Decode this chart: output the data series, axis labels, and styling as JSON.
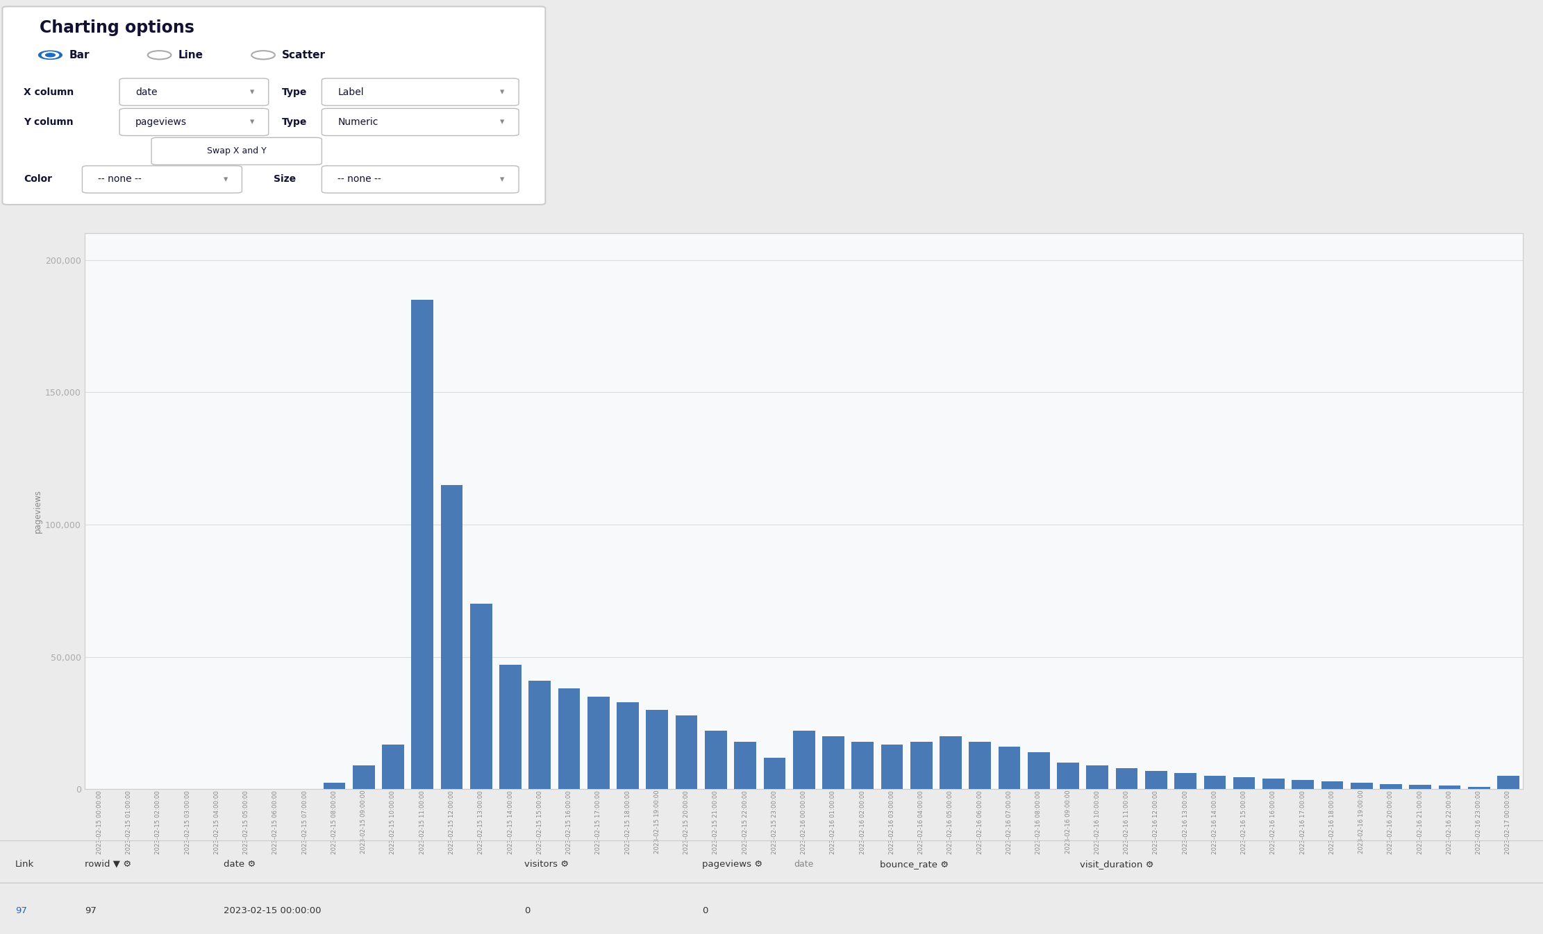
{
  "bar_color": "#4a7ab5",
  "fig_bg": "#ebebeb",
  "chart_bg": "#f8f9fa",
  "plot_bg": "#ffffff",
  "ylim": [
    0,
    210000
  ],
  "yticks": [
    0,
    50000,
    100000,
    150000,
    200000
  ],
  "ytick_labels": [
    "0",
    "50,000",
    "100,000",
    "150,000",
    "200,000"
  ],
  "ylabel": "pageviews",
  "xlabel": "date",
  "dates": [
    "2023-02-15 00:00:00",
    "2023-02-15 01:00:00",
    "2023-02-15 02:00:00",
    "2023-02-15 03:00:00",
    "2023-02-15 04:00:00",
    "2023-02-15 05:00:00",
    "2023-02-15 06:00:00",
    "2023-02-15 07:00:00",
    "2023-02-15 08:00:00",
    "2023-02-15 09:00:00",
    "2023-02-15 10:00:00",
    "2023-02-15 11:00:00",
    "2023-02-15 12:00:00",
    "2023-02-15 13:00:00",
    "2023-02-15 14:00:00",
    "2023-02-15 15:00:00",
    "2023-02-15 16:00:00",
    "2023-02-15 17:00:00",
    "2023-02-15 18:00:00",
    "2023-02-15 19:00:00",
    "2023-02-15 20:00:00",
    "2023-02-15 21:00:00",
    "2023-02-15 22:00:00",
    "2023-02-15 23:00:00",
    "2023-02-16 00:00:00",
    "2023-02-16 01:00:00",
    "2023-02-16 02:00:00",
    "2023-02-16 03:00:00",
    "2023-02-16 04:00:00",
    "2023-02-16 05:00:00",
    "2023-02-16 06:00:00",
    "2023-02-16 07:00:00",
    "2023-02-16 08:00:00",
    "2023-02-16 09:00:00",
    "2023-02-16 10:00:00",
    "2023-02-16 11:00:00",
    "2023-02-16 12:00:00",
    "2023-02-16 13:00:00",
    "2023-02-16 14:00:00",
    "2023-02-16 15:00:00",
    "2023-02-16 16:00:00",
    "2023-02-16 17:00:00",
    "2023-02-16 18:00:00",
    "2023-02-16 19:00:00",
    "2023-02-16 20:00:00",
    "2023-02-16 21:00:00",
    "2023-02-16 22:00:00",
    "2023-02-16 23:00:00",
    "2023-02-17 00:00:00"
  ],
  "pageviews": [
    0,
    0,
    0,
    0,
    0,
    0,
    0,
    0,
    2500,
    9000,
    17000,
    185000,
    115000,
    70000,
    47000,
    41000,
    38000,
    35000,
    33000,
    30000,
    28000,
    22000,
    18000,
    12000,
    22000,
    20000,
    18000,
    17000,
    18000,
    20000,
    18000,
    16000,
    14000,
    10000,
    9000,
    8000,
    7000,
    6000,
    5000,
    4500,
    4000,
    3500,
    3000,
    2500,
    2000,
    1800,
    1500,
    1000,
    5000
  ],
  "ui_title": "Charting options",
  "ui_radio": [
    "Bar",
    "Line",
    "Scatter"
  ],
  "ui_xcol_label": "X column",
  "ui_xcol_val": "date",
  "ui_xtype_label": "Type",
  "ui_xtype_val": "Label",
  "ui_ycol_label": "Y column",
  "ui_ycol_val": "pageviews",
  "ui_ytype_label": "Type",
  "ui_ytype_val": "Numeric",
  "ui_swap": "Swap X and Y",
  "ui_color_label": "Color",
  "ui_color_val": "-- none --",
  "ui_size_label": "Size",
  "ui_size_val": "-- none --",
  "table_cols": [
    "Link",
    "rowid",
    "date",
    "visitors",
    "pageviews",
    "bounce_rate",
    "visit_duration"
  ],
  "table_row": [
    "97",
    "97",
    "2023-02-15 00:00:00",
    "0",
    "0",
    "",
    ""
  ]
}
